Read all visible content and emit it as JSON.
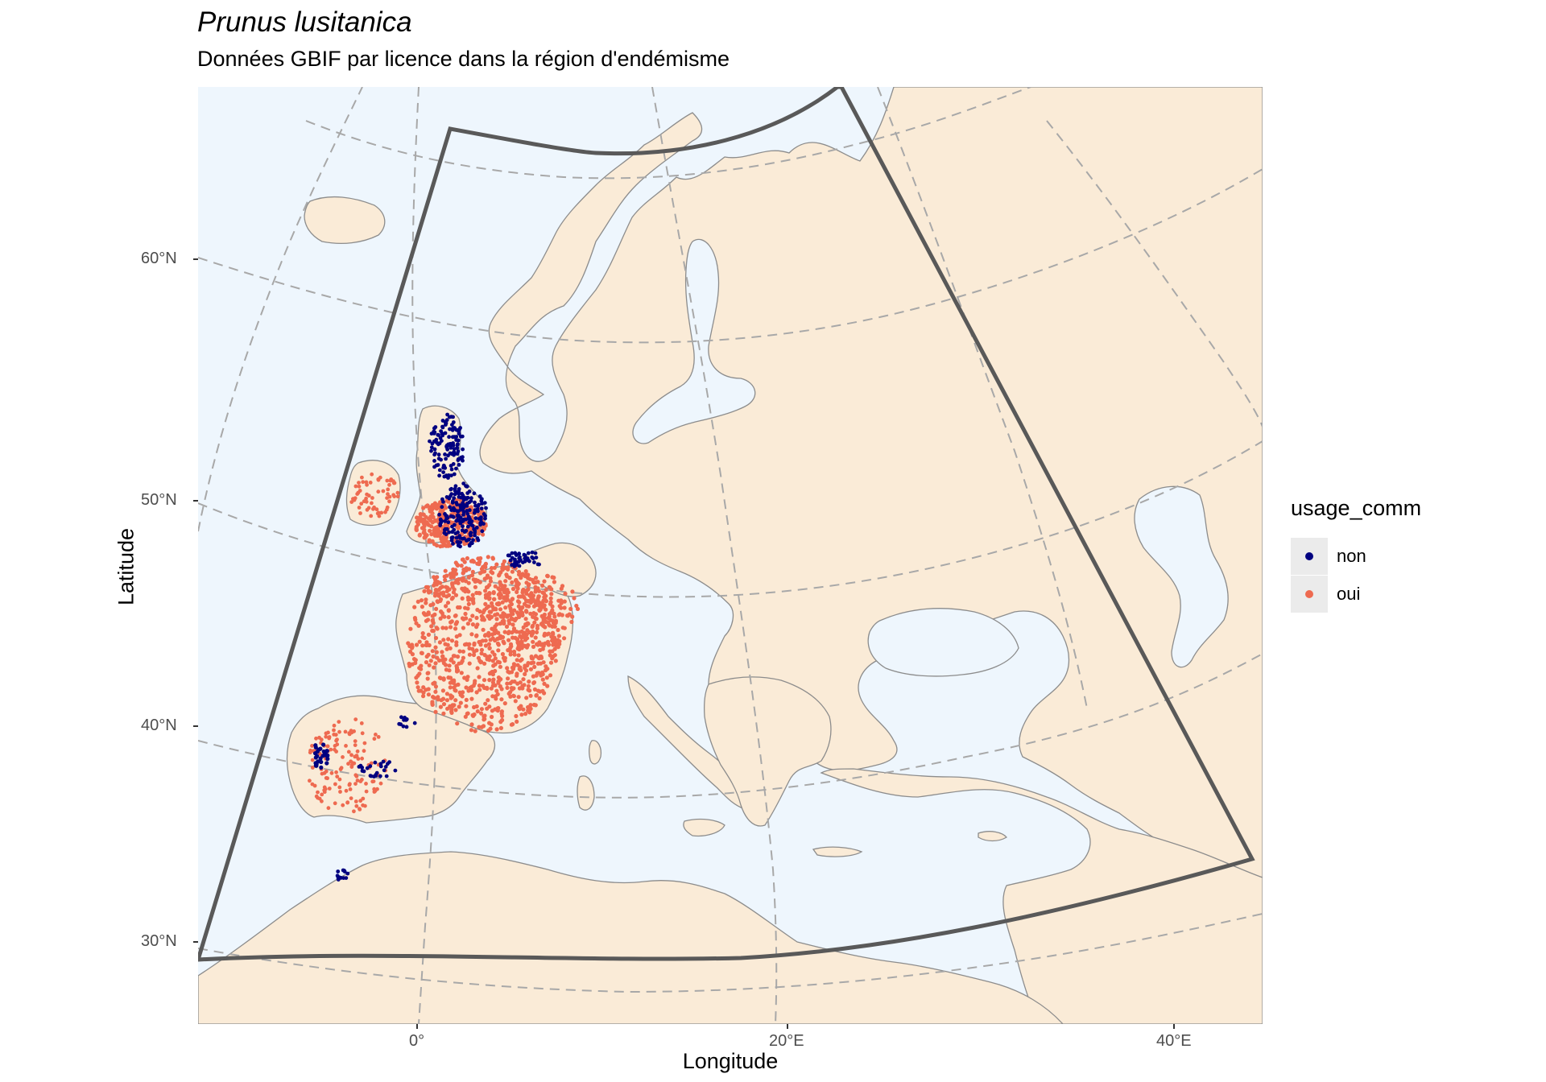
{
  "title": "Prunus lusitanica",
  "subtitle": "Données GBIF par licence dans la région d'endémisme",
  "axes": {
    "x_title": "Longitude",
    "y_title": "Latitude",
    "x_ticks": [
      "0°",
      "20°E",
      "40°E"
    ],
    "y_ticks": [
      "60°N",
      "50°N",
      "40°N",
      "30°N"
    ]
  },
  "legend": {
    "title": "usage_comm",
    "items": [
      {
        "label": "non",
        "color": "#000080"
      },
      {
        "label": "oui",
        "color": "#EE6A50"
      }
    ]
  },
  "colors": {
    "sea": "#EEF6FD",
    "land": "#FAEBD7",
    "border": "#8C8C8C",
    "graticule": "#A8A8A8",
    "outline": "#595959",
    "non": "#000080",
    "oui": "#EE6A50"
  },
  "map": {
    "projection": "conic",
    "extent_note_lon": [
      -12,
      44
    ],
    "graticule": "dashed",
    "region_outline": "endemism region sector"
  }
}
